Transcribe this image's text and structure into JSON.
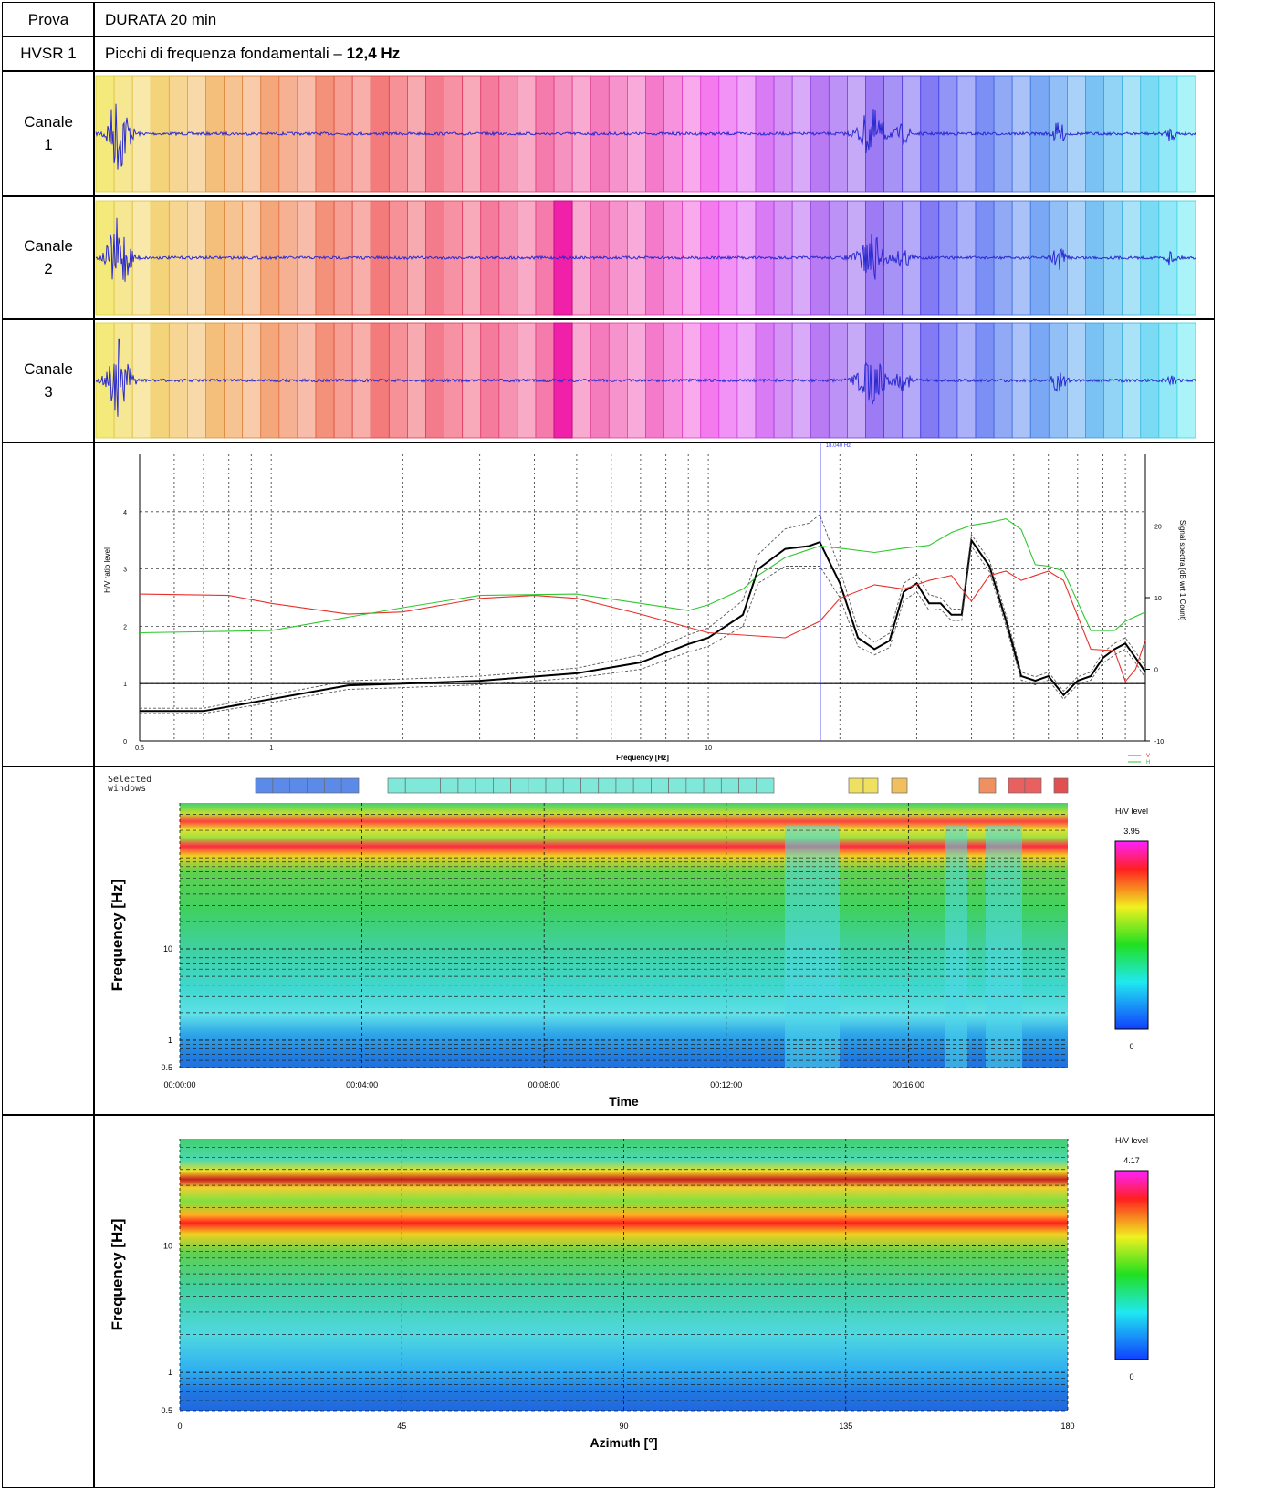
{
  "table": {
    "test_label": "Prova",
    "test_value": "DURATA 20 min",
    "hvsr_label": "HVSR 1",
    "peaks_label": "Picchi di frequenza fondamentali –",
    "peaks_value": "12,4 Hz",
    "channels": [
      "Canale 1",
      "Canale 2",
      "Canale 3"
    ]
  },
  "chart_data": [
    {
      "type": "line",
      "x_label": "Frequency [Hz]",
      "y_label": "H/V ratio level",
      "y2_label": "Signal spectra [dB wrt 1 Count]",
      "log_x": true,
      "xlim": [
        0.5,
        100
      ],
      "xticks": [
        0.5,
        1,
        10
      ],
      "ylim": [
        0,
        5
      ],
      "yticks": [
        0,
        1,
        2,
        3,
        4
      ],
      "y2lim": [
        -10,
        30
      ],
      "y2ticks": [
        -10,
        0,
        10,
        20
      ],
      "grid": true,
      "reference_line": 1,
      "marker": {
        "value": 18.04,
        "label": "18.040 Hz",
        "color": "#3a3aff"
      },
      "legend": "lower right",
      "series": [
        {
          "color": "#000000",
          "x": [
            0.5,
            0.7,
            1,
            1.5,
            2,
            3,
            5,
            7,
            9,
            10,
            12,
            13,
            15,
            17,
            18,
            20,
            22,
            24,
            26,
            28,
            30,
            32,
            34,
            36,
            38,
            40,
            44,
            48,
            52,
            56,
            60,
            65,
            70,
            75,
            80,
            85,
            90,
            95,
            100
          ],
          "values": [
            0.52,
            0.52,
            0.73,
            0.97,
            1.0,
            1.05,
            1.18,
            1.37,
            1.69,
            1.8,
            2.2,
            3.0,
            3.35,
            3.4,
            3.47,
            2.75,
            1.8,
            1.6,
            1.75,
            2.6,
            2.75,
            2.4,
            2.4,
            2.2,
            2.2,
            3.5,
            3.05,
            2.1,
            1.13,
            1.05,
            1.13,
            0.8,
            1.05,
            1.13,
            1.45,
            1.6,
            1.7,
            1.45,
            1.2
          ]
        },
        {
          "color": "#555555",
          "dashed": true,
          "x": [
            0.5,
            0.7,
            1,
            1.5,
            2,
            3,
            5,
            7,
            9,
            10,
            12,
            13,
            15,
            17,
            18,
            20,
            22,
            24,
            26,
            28,
            30,
            32,
            34,
            36,
            38,
            40,
            44,
            48,
            52,
            56,
            60,
            65,
            70,
            75,
            80,
            85,
            90,
            95,
            100
          ],
          "values": [
            0.57,
            0.57,
            0.8,
            1.05,
            1.08,
            1.13,
            1.27,
            1.5,
            1.85,
            1.97,
            2.45,
            3.25,
            3.7,
            3.8,
            3.95,
            3.0,
            1.95,
            1.72,
            1.88,
            2.75,
            2.9,
            2.55,
            2.5,
            2.3,
            2.3,
            3.6,
            3.15,
            2.2,
            1.2,
            1.12,
            1.2,
            0.87,
            1.12,
            1.2,
            1.55,
            1.7,
            1.8,
            1.55,
            1.3
          ]
        },
        {
          "color": "#555555",
          "dashed": true,
          "x": [
            0.5,
            0.7,
            1,
            1.5,
            2,
            3,
            5,
            7,
            9,
            10,
            12,
            13,
            15,
            17,
            18,
            20,
            22,
            24,
            26,
            28,
            30,
            32,
            34,
            36,
            38,
            40,
            44,
            48,
            52,
            56,
            60,
            65,
            70,
            75,
            80,
            85,
            90,
            95,
            100
          ],
          "values": [
            0.48,
            0.48,
            0.67,
            0.9,
            0.93,
            0.98,
            1.1,
            1.25,
            1.55,
            1.65,
            2.0,
            2.75,
            3.05,
            3.05,
            3.05,
            2.5,
            1.65,
            1.5,
            1.63,
            2.45,
            2.6,
            2.28,
            2.3,
            2.1,
            2.1,
            3.4,
            2.95,
            2.0,
            1.06,
            0.98,
            1.06,
            0.73,
            0.98,
            1.06,
            1.36,
            1.5,
            1.6,
            1.36,
            1.1
          ]
        },
        {
          "name": "V",
          "color": "#e8302a",
          "axis": "y2",
          "x": [
            0.5,
            0.8,
            1,
            1.5,
            2,
            3,
            4,
            5,
            7,
            10,
            15,
            18,
            20,
            24,
            28,
            32,
            36,
            40,
            44,
            48,
            52,
            56,
            60,
            65,
            75,
            85,
            90,
            95,
            100
          ],
          "values": [
            10.5,
            10.3,
            9.2,
            7.7,
            8,
            9.9,
            10.3,
            9.9,
            7.7,
            5.1,
            4.4,
            6.7,
            9.9,
            11.8,
            11.2,
            12.4,
            13.1,
            9.5,
            13.1,
            13.7,
            12.4,
            13.1,
            13.7,
            12.4,
            2.8,
            2.6,
            -1.7,
            0,
            4.1
          ]
        },
        {
          "name": "H",
          "color": "#2ec82e",
          "axis": "y2",
          "x": [
            0.5,
            1,
            2,
            3,
            5,
            7,
            9,
            10,
            12,
            13,
            15,
            18,
            20,
            24,
            28,
            32,
            36,
            40,
            44,
            48,
            52,
            56,
            60,
            65,
            75,
            85,
            90,
            100
          ],
          "values": [
            5.1,
            5.4,
            8.6,
            10.3,
            10.5,
            9.2,
            8.2,
            9,
            11.2,
            13.1,
            15.6,
            17.2,
            16.9,
            16.3,
            16.9,
            17.3,
            19.1,
            20.1,
            20.5,
            21,
            19.5,
            14.6,
            14.4,
            13.7,
            5.4,
            5.4,
            6.7,
            8
          ]
        }
      ]
    },
    {
      "type": "heatmap",
      "x_label": "Time",
      "y_label": "Frequency [Hz]",
      "windows_label": "Selected windows",
      "colorbar_label": "H/V level",
      "zlim": [
        0,
        3.95
      ],
      "xlim": [
        0,
        1170
      ],
      "xticks": [
        {
          "value": 0,
          "label": "00:00:00"
        },
        {
          "value": 240,
          "label": "00:04:00"
        },
        {
          "value": 480,
          "label": "00:08:00"
        },
        {
          "value": 720,
          "label": "00:12:00"
        },
        {
          "value": 960,
          "label": "00:16:00"
        }
      ],
      "log_y": true,
      "ylim": [
        0.5,
        400
      ],
      "yticks": [
        0.5,
        1,
        10
      ],
      "grid": true
    },
    {
      "type": "heatmap",
      "x_label": "Azimuth [°]",
      "y_label": "Frequency [Hz]",
      "colorbar_label": "H/V level",
      "zlim": [
        0,
        4.17
      ],
      "xlim": [
        0,
        180
      ],
      "xticks": [
        0,
        45,
        90,
        135,
        180
      ],
      "log_y": true,
      "ylim": [
        0.5,
        70
      ],
      "yticks": [
        0.5,
        1,
        10
      ],
      "grid": true
    }
  ]
}
